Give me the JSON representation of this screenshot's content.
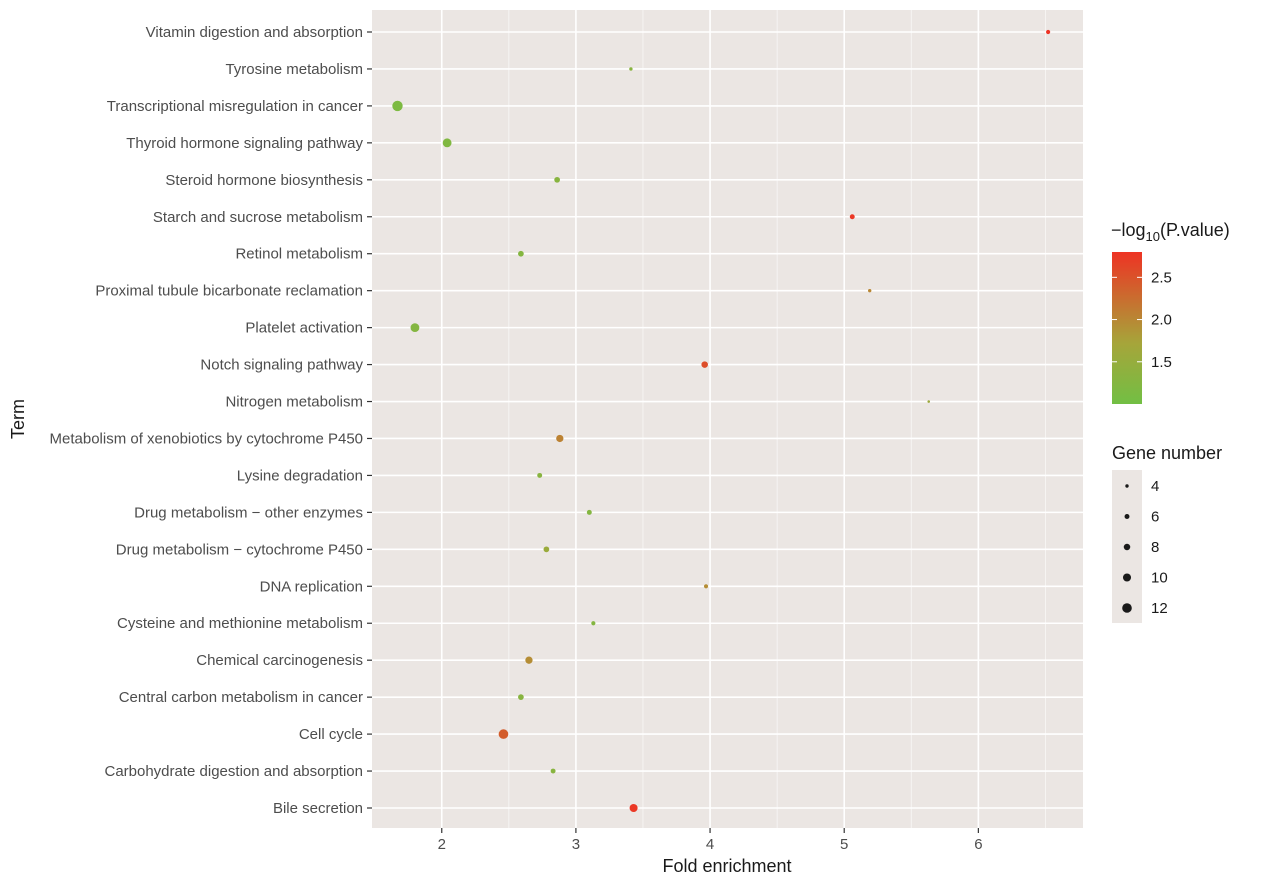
{
  "chart_data": {
    "type": "scatter",
    "title": "",
    "xlabel": "Fold enrichment",
    "ylabel": "Term",
    "xlim": [
      1.48,
      6.78
    ],
    "x_ticks": [
      "2",
      "3",
      "4",
      "5",
      "6"
    ],
    "grid": true,
    "panel_background": "#ebe6e3",
    "categories": [
      "Bile secretion",
      "Carbohydrate digestion and absorption",
      "Cell cycle",
      "Central carbon metabolism in cancer",
      "Chemical carcinogenesis",
      "Cysteine and methionine metabolism",
      "DNA replication",
      "Drug metabolism − cytochrome P450",
      "Drug metabolism − other enzymes",
      "Lysine degradation",
      "Metabolism of xenobiotics by cytochrome P450",
      "Nitrogen metabolism",
      "Notch signaling pathway",
      "Platelet activation",
      "Proximal tubule bicarbonate reclamation",
      "Retinol metabolism",
      "Starch and sucrose metabolism",
      "Steroid hormone biosynthesis",
      "Thyroid hormone signaling pathway",
      "Transcriptional misregulation in cancer",
      "Tyrosine metabolism",
      "Vitamin digestion and absorption"
    ],
    "points": [
      {
        "term": "Bile secretion",
        "fold_enrichment": 3.43,
        "neg_log10_p": 2.75,
        "gene_number": 10
      },
      {
        "term": "Carbohydrate digestion and absorption",
        "fold_enrichment": 2.83,
        "neg_log10_p": 1.3,
        "gene_number": 6
      },
      {
        "term": "Cell cycle",
        "fold_enrichment": 2.46,
        "neg_log10_p": 2.4,
        "gene_number": 12
      },
      {
        "term": "Central carbon metabolism in cancer",
        "fold_enrichment": 2.59,
        "neg_log10_p": 1.3,
        "gene_number": 7
      },
      {
        "term": "Chemical carcinogenesis",
        "fold_enrichment": 2.65,
        "neg_log10_p": 1.95,
        "gene_number": 9
      },
      {
        "term": "Cysteine and methionine metabolism",
        "fold_enrichment": 3.13,
        "neg_log10_p": 1.25,
        "gene_number": 5
      },
      {
        "term": "DNA replication",
        "fold_enrichment": 3.97,
        "neg_log10_p": 1.95,
        "gene_number": 5
      },
      {
        "term": "Drug metabolism − cytochrome P450",
        "fold_enrichment": 2.78,
        "neg_log10_p": 1.55,
        "gene_number": 7
      },
      {
        "term": "Drug metabolism − other enzymes",
        "fold_enrichment": 3.1,
        "neg_log10_p": 1.25,
        "gene_number": 6
      },
      {
        "term": "Lysine degradation",
        "fold_enrichment": 2.73,
        "neg_log10_p": 1.3,
        "gene_number": 6
      },
      {
        "term": "Metabolism of xenobiotics by cytochrome P450",
        "fold_enrichment": 2.88,
        "neg_log10_p": 2.05,
        "gene_number": 9
      },
      {
        "term": "Nitrogen metabolism",
        "fold_enrichment": 5.63,
        "neg_log10_p": 1.6,
        "gene_number": 3
      },
      {
        "term": "Notch signaling pathway",
        "fold_enrichment": 3.96,
        "neg_log10_p": 2.55,
        "gene_number": 8
      },
      {
        "term": "Platelet activation",
        "fold_enrichment": 1.8,
        "neg_log10_p": 1.25,
        "gene_number": 11
      },
      {
        "term": "Proximal tubule bicarbonate reclamation",
        "fold_enrichment": 5.19,
        "neg_log10_p": 2.0,
        "gene_number": 4
      },
      {
        "term": "Retinol metabolism",
        "fold_enrichment": 2.59,
        "neg_log10_p": 1.25,
        "gene_number": 7
      },
      {
        "term": "Starch and sucrose metabolism",
        "fold_enrichment": 5.06,
        "neg_log10_p": 2.75,
        "gene_number": 6
      },
      {
        "term": "Steroid hormone biosynthesis",
        "fold_enrichment": 2.86,
        "neg_log10_p": 1.3,
        "gene_number": 7
      },
      {
        "term": "Thyroid hormone signaling pathway",
        "fold_enrichment": 2.04,
        "neg_log10_p": 1.2,
        "gene_number": 11
      },
      {
        "term": "Transcriptional misregulation in cancer",
        "fold_enrichment": 1.67,
        "neg_log10_p": 1.15,
        "gene_number": 13
      },
      {
        "term": "Tyrosine metabolism",
        "fold_enrichment": 3.41,
        "neg_log10_p": 1.3,
        "gene_number": 4
      },
      {
        "term": "Vitamin digestion and absorption",
        "fold_enrichment": 6.52,
        "neg_log10_p": 2.8,
        "gene_number": 5
      }
    ],
    "color_scale": {
      "title_prefix": "−log",
      "title_subscript": "10",
      "title_suffix": "(P.value)",
      "min": 1.0,
      "max": 2.8,
      "ticks": [
        "1.5",
        "2.0",
        "2.5"
      ],
      "low_color": "#72bf44",
      "high_color": "#ee3324"
    },
    "size_legend": {
      "title": "Gene number",
      "values": [
        "4",
        "6",
        "8",
        "10",
        "12"
      ],
      "range": [
        3,
        13
      ]
    }
  }
}
